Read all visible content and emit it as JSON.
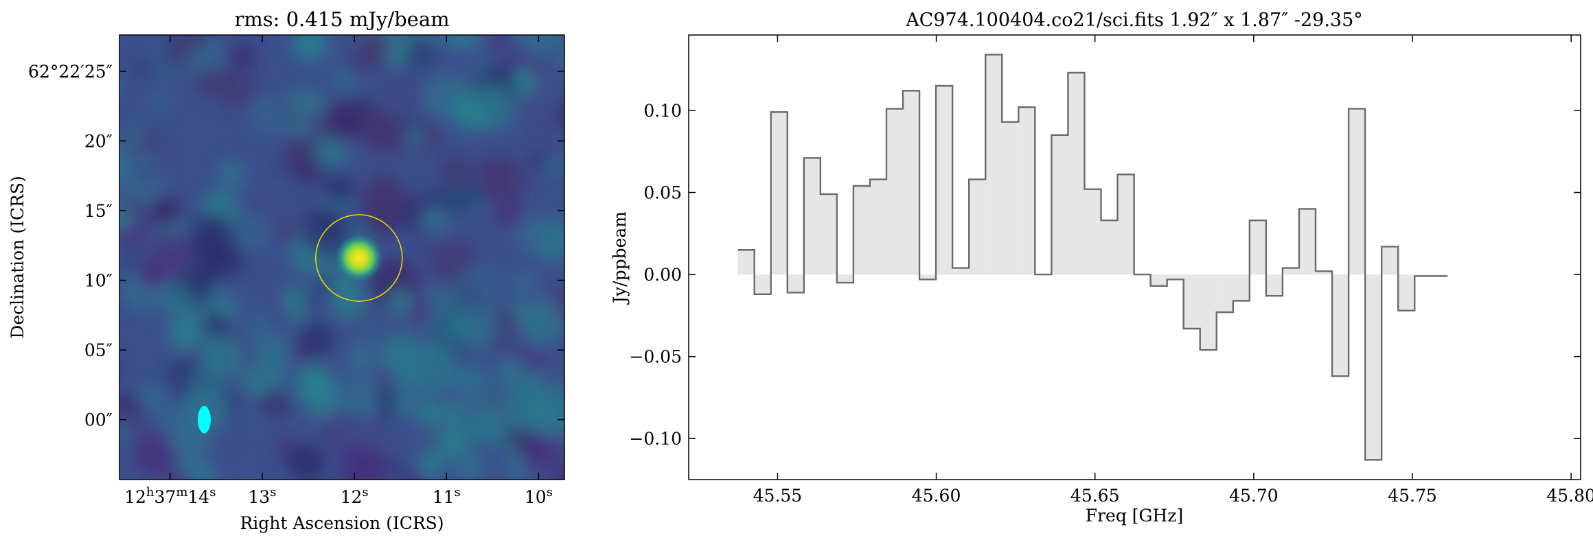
{
  "chart_data": [
    {
      "type": "heatmap",
      "title": "rms: 0.415 mJy/beam",
      "xlabel": "Right Ascension (ICRS)",
      "ylabel": "Declination (ICRS)",
      "x_ticks": [
        {
          "label": "12h37m14s",
          "html": "12<tspan baseline-shift=\"super\" font-size=\"18\">h</tspan>37<tspan baseline-shift=\"super\" font-size=\"18\">m</tspan>14<tspan baseline-shift=\"super\" font-size=\"18\">s</tspan>",
          "value": 14
        },
        {
          "label": "13s",
          "html": "13<tspan baseline-shift=\"super\" font-size=\"18\">s</tspan>",
          "value": 13
        },
        {
          "label": "12s",
          "html": "12<tspan baseline-shift=\"super\" font-size=\"18\">s</tspan>",
          "value": 12
        },
        {
          "label": "11s",
          "html": "11<tspan baseline-shift=\"super\" font-size=\"18\">s</tspan>",
          "value": 11
        },
        {
          "label": "10s",
          "html": "10<tspan baseline-shift=\"super\" font-size=\"18\">s</tspan>",
          "value": 10
        }
      ],
      "y_ticks": [
        {
          "label": "62°22′25″",
          "value": 25
        },
        {
          "label": "20″",
          "value": 20
        },
        {
          "label": "15″",
          "value": 15
        },
        {
          "label": "10″",
          "value": 10
        },
        {
          "label": "05″",
          "value": 5
        },
        {
          "label": "00″",
          "value": 0
        }
      ],
      "ra_range_s": [
        14.55,
        9.72
      ],
      "dec_range_arcsec": [
        -4.3,
        27.6
      ],
      "source": {
        "ra_s": 11.95,
        "dec_arcsec": 11.6,
        "aperture_radius_arcsec": 3.1
      },
      "beam": {
        "ra_s": 13.63,
        "dec_arcsec": 0.0,
        "major_arcsec": 1.92,
        "minor_arcsec": 1.87
      },
      "colormap": "viridis",
      "colors": {
        "aperture": "#e8e000",
        "beam": "#00ffff"
      }
    },
    {
      "type": "step",
      "title": "AC974.100404.co21/sci.fits 1.92″ x 1.87″ -29.35°",
      "xlabel": "Freq [GHz]",
      "ylabel": "Jy/ppbeam",
      "xlim": [
        45.522,
        45.803
      ],
      "ylim": [
        -0.125,
        0.146
      ],
      "x_ticks": [
        45.55,
        45.6,
        45.65,
        45.7,
        45.75,
        45.8
      ],
      "x_tick_labels": [
        "45.55",
        "45.60",
        "45.65",
        "45.70",
        "45.75",
        "45.80"
      ],
      "y_ticks": [
        0.1,
        0.05,
        0.0,
        -0.05,
        -0.1
      ],
      "y_tick_labels": [
        "0.10",
        "0.05",
        "0.00",
        "−0.05",
        "−0.10"
      ],
      "channel_width_GHz": 0.0052,
      "freq_start_GHz": 45.5375,
      "values": [
        0.015,
        -0.012,
        0.099,
        -0.011,
        0.071,
        0.049,
        -0.005,
        0.054,
        0.058,
        0.101,
        0.112,
        -0.003,
        0.115,
        0.004,
        0.058,
        0.134,
        0.093,
        0.102,
        0.0,
        0.085,
        0.123,
        0.052,
        0.033,
        0.061,
        0.0,
        -0.007,
        -0.003,
        -0.033,
        -0.046,
        -0.023,
        -0.016,
        0.033,
        -0.013,
        0.004,
        0.04,
        0.002,
        -0.062,
        0.101,
        -0.113,
        0.017,
        -0.022,
        -0.001,
        -0.001
      ],
      "colors": {
        "line": "#6b6b6b",
        "fill": "#e6e6e6"
      }
    }
  ]
}
